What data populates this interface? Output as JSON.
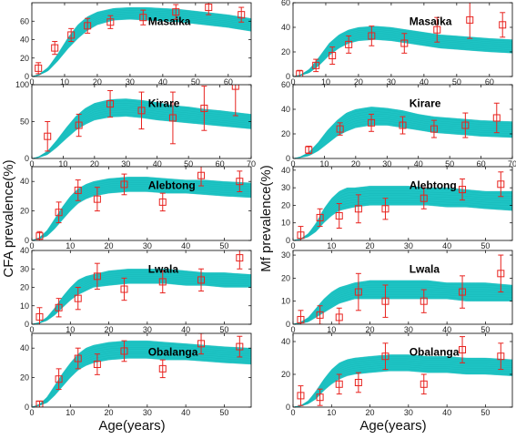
{
  "figure": {
    "ylabel_left": "CFA prevalence(%)",
    "ylabel_right": "Mf prevalence(%)",
    "xlabel_left": "Age(years)",
    "xlabel_right": "Age(years)",
    "band_color": "#1EC4C4",
    "marker_color": "#E8231F"
  },
  "chart_data": [
    {
      "id": "cfa-masaika",
      "type": "line",
      "column": "left",
      "row": 0,
      "title": "Masaika",
      "xlim": [
        0,
        67
      ],
      "ylim": [
        0,
        80
      ],
      "xticks": [
        0,
        10,
        20,
        30,
        40,
        50,
        60
      ],
      "yticks": [
        0,
        20,
        40,
        60
      ],
      "band": {
        "age": [
          0,
          2,
          5,
          8,
          11,
          14,
          17,
          20,
          25,
          30,
          35,
          40,
          45,
          50,
          55,
          60,
          67
        ],
        "lower": [
          0,
          1,
          6,
          17,
          30,
          41,
          50,
          56,
          61,
          62,
          61,
          60,
          59,
          57,
          55,
          53,
          49
        ],
        "upper": [
          0,
          2,
          10,
          25,
          42,
          56,
          65,
          70,
          74,
          75,
          75,
          74,
          73,
          71,
          69,
          67,
          63
        ]
      },
      "points": {
        "age": [
          2,
          7,
          12,
          17,
          24,
          34,
          44,
          54,
          64
        ],
        "value": [
          9,
          31,
          45,
          55,
          59,
          64,
          70,
          75,
          67
        ],
        "err": [
          6,
          7,
          7,
          8,
          7,
          8,
          8,
          8,
          8
        ]
      }
    },
    {
      "id": "cfa-kirare",
      "type": "line",
      "column": "left",
      "row": 1,
      "title": "Kirare",
      "xlim": [
        0,
        70
      ],
      "ylim": [
        0,
        100
      ],
      "xticks": [
        0,
        10,
        20,
        30,
        40,
        50,
        60,
        70
      ],
      "yticks": [
        0,
        50,
        100
      ],
      "band": {
        "age": [
          0,
          2,
          5,
          8,
          11,
          14,
          17,
          20,
          25,
          30,
          35,
          40,
          45,
          50,
          55,
          60,
          70
        ],
        "lower": [
          0,
          1,
          5,
          15,
          27,
          38,
          46,
          52,
          56,
          57,
          55,
          52,
          50,
          48,
          46,
          44,
          40
        ],
        "upper": [
          0,
          2,
          10,
          25,
          42,
          57,
          68,
          75,
          80,
          81,
          79,
          76,
          72,
          70,
          67,
          65,
          60
        ]
      },
      "points": {
        "age": [
          5,
          15,
          25,
          35,
          45,
          55,
          65
        ],
        "value": [
          30,
          45,
          74,
          65,
          55,
          68,
          98
        ],
        "err": [
          20,
          15,
          18,
          25,
          35,
          30,
          40
        ]
      }
    },
    {
      "id": "cfa-alebtong",
      "type": "line",
      "column": "left",
      "row": 2,
      "title": "Alebtong",
      "xlim": [
        0,
        57
      ],
      "ylim": [
        0,
        50
      ],
      "xticks": [
        0,
        10,
        20,
        30,
        40,
        50
      ],
      "yticks": [
        0,
        20,
        40
      ],
      "band": {
        "age": [
          0,
          2,
          4,
          6,
          8,
          10,
          12,
          14,
          16,
          20,
          25,
          30,
          35,
          40,
          45,
          50,
          57
        ],
        "lower": [
          0,
          1,
          3,
          8,
          14,
          20,
          25,
          28,
          30,
          32,
          33,
          33,
          32,
          32,
          31,
          30,
          29
        ],
        "upper": [
          0,
          2,
          7,
          15,
          23,
          30,
          35,
          38,
          40,
          42,
          43,
          43,
          42,
          41,
          41,
          40,
          39
        ]
      },
      "points": {
        "age": [
          2,
          7,
          12,
          17,
          24,
          34,
          44,
          54
        ],
        "value": [
          3,
          19,
          34,
          28,
          38,
          26,
          44,
          40
        ],
        "err": [
          3,
          7,
          7,
          8,
          7,
          6,
          7,
          7
        ]
      }
    },
    {
      "id": "cfa-lwala",
      "type": "line",
      "column": "left",
      "row": 3,
      "title": "Lwala",
      "xlim": [
        0,
        57
      ],
      "ylim": [
        0,
        40
      ],
      "xticks": [
        0,
        10,
        20,
        30,
        40,
        50
      ],
      "yticks": [
        0,
        10,
        20,
        30,
        40
      ],
      "band": {
        "age": [
          0,
          2,
          4,
          6,
          8,
          10,
          12,
          14,
          16,
          20,
          25,
          30,
          35,
          40,
          45,
          50,
          57
        ],
        "lower": [
          0,
          0.5,
          2,
          5,
          9,
          13,
          16,
          18,
          20,
          21,
          22,
          22,
          22,
          21,
          21,
          20,
          20
        ],
        "upper": [
          0,
          1,
          4,
          9,
          15,
          20,
          24,
          26,
          27,
          29,
          30,
          30,
          30,
          29,
          28,
          28,
          27
        ]
      },
      "points": {
        "age": [
          2,
          7,
          12,
          17,
          24,
          34,
          44,
          54
        ],
        "value": [
          4,
          9,
          14,
          26,
          19,
          23,
          24,
          36
        ],
        "err": [
          5,
          5,
          6,
          7,
          6,
          6,
          6,
          6
        ]
      }
    },
    {
      "id": "cfa-obalanga",
      "type": "line",
      "column": "left",
      "row": 4,
      "title": "Obalanga",
      "xlim": [
        0,
        57
      ],
      "ylim": [
        0,
        50
      ],
      "xticks": [
        0,
        10,
        20,
        30,
        40,
        50
      ],
      "yticks": [
        0,
        20,
        40
      ],
      "band": {
        "age": [
          0,
          2,
          4,
          6,
          8,
          10,
          12,
          14,
          16,
          20,
          25,
          30,
          35,
          40,
          45,
          50,
          57
        ],
        "lower": [
          0,
          1,
          3,
          8,
          14,
          20,
          25,
          28,
          30,
          32,
          33,
          33,
          32,
          32,
          31,
          30,
          29
        ],
        "upper": [
          0,
          2,
          7,
          15,
          23,
          30,
          36,
          40,
          42,
          44,
          45,
          45,
          44,
          43,
          42,
          41,
          40
        ]
      },
      "points": {
        "age": [
          2,
          7,
          12,
          17,
          24,
          34,
          44,
          54
        ],
        "value": [
          2,
          19,
          33,
          29,
          38,
          26,
          43,
          41
        ],
        "err": [
          2,
          7,
          7,
          7,
          7,
          6,
          7,
          7
        ]
      }
    },
    {
      "id": "mf-masaika",
      "type": "line",
      "column": "right",
      "row": 0,
      "title": "Masaika",
      "xlim": [
        0,
        67
      ],
      "ylim": [
        0,
        60
      ],
      "xticks": [
        0,
        10,
        20,
        30,
        40,
        50,
        60
      ],
      "yticks": [
        0,
        20,
        40,
        60
      ],
      "band": {
        "age": [
          0,
          2,
          5,
          8,
          11,
          14,
          17,
          20,
          25,
          30,
          35,
          40,
          45,
          50,
          55,
          60,
          67
        ],
        "lower": [
          0,
          0.5,
          3,
          9,
          17,
          23,
          27,
          29,
          30,
          29,
          27,
          25,
          23,
          22,
          21,
          20,
          19
        ],
        "upper": [
          0,
          1,
          6,
          16,
          27,
          34,
          38,
          40,
          41,
          40,
          38,
          36,
          34,
          33,
          32,
          31,
          30
        ]
      },
      "points": {
        "age": [
          2,
          7,
          12,
          17,
          24,
          34,
          44,
          54,
          64
        ],
        "value": [
          2,
          9,
          17,
          26,
          33,
          27,
          38,
          46,
          42
        ],
        "err": [
          3,
          5,
          7,
          7,
          8,
          8,
          10,
          15,
          10
        ]
      }
    },
    {
      "id": "mf-kirare",
      "type": "line",
      "column": "right",
      "row": 1,
      "title": "Kirare",
      "xlim": [
        0,
        70
      ],
      "ylim": [
        0,
        60
      ],
      "xticks": [
        0,
        10,
        20,
        30,
        40,
        50,
        60,
        70
      ],
      "yticks": [
        0,
        20,
        40,
        60
      ],
      "band": {
        "age": [
          0,
          2,
          5,
          8,
          11,
          14,
          17,
          20,
          25,
          30,
          35,
          40,
          45,
          50,
          55,
          60,
          70
        ],
        "lower": [
          0,
          0.5,
          2,
          6,
          12,
          18,
          22,
          25,
          27,
          27,
          25,
          23,
          21,
          20,
          19,
          18,
          17
        ],
        "upper": [
          0,
          1,
          5,
          13,
          23,
          31,
          37,
          40,
          42,
          41,
          39,
          36,
          34,
          33,
          32,
          31,
          30
        ]
      },
      "points": {
        "age": [
          5,
          15,
          25,
          35,
          45,
          55,
          65
        ],
        "value": [
          7,
          24,
          29,
          27,
          24,
          27,
          33
        ],
        "err": [
          3,
          5,
          7,
          7,
          7,
          10,
          12
        ]
      }
    },
    {
      "id": "mf-alebtong",
      "type": "line",
      "column": "right",
      "row": 2,
      "title": "Alebtong",
      "xlim": [
        0,
        57
      ],
      "ylim": [
        0,
        42
      ],
      "xticks": [
        0,
        10,
        20,
        30,
        40,
        50
      ],
      "yticks": [
        0,
        10,
        20,
        30,
        40
      ],
      "band": {
        "age": [
          0,
          2,
          4,
          6,
          8,
          10,
          12,
          14,
          16,
          20,
          25,
          30,
          35,
          40,
          45,
          50,
          57
        ],
        "lower": [
          0,
          0.5,
          2,
          5,
          10,
          14,
          17,
          18,
          19,
          20,
          20,
          20,
          20,
          19,
          19,
          18,
          17
        ],
        "upper": [
          0,
          1,
          4,
          10,
          18,
          24,
          28,
          30,
          30,
          31,
          31,
          31,
          30,
          30,
          29,
          28,
          28
        ]
      },
      "points": {
        "age": [
          2,
          7,
          12,
          17,
          24,
          34,
          44,
          54
        ],
        "value": [
          3,
          13,
          14,
          18,
          18,
          24,
          29,
          32
        ],
        "err": [
          5,
          5,
          7,
          8,
          6,
          6,
          6,
          7
        ]
      }
    },
    {
      "id": "mf-lwala",
      "type": "line",
      "column": "right",
      "row": 3,
      "title": "Lwala",
      "xlim": [
        0,
        57
      ],
      "ylim": [
        0,
        32
      ],
      "xticks": [
        0,
        10,
        20,
        30,
        40,
        50
      ],
      "yticks": [
        0,
        10,
        20,
        30
      ],
      "band": {
        "age": [
          0,
          2,
          4,
          6,
          8,
          10,
          12,
          14,
          16,
          20,
          25,
          30,
          35,
          40,
          45,
          50,
          57
        ],
        "lower": [
          0,
          0.3,
          1,
          3,
          5,
          7,
          9,
          10,
          11,
          11,
          11,
          11,
          11,
          11,
          10,
          10,
          10
        ],
        "upper": [
          0,
          1,
          3,
          7,
          11,
          14,
          16,
          17,
          18,
          19,
          19,
          19,
          19,
          18,
          18,
          18,
          17
        ]
      },
      "points": {
        "age": [
          2,
          7,
          12,
          17,
          24,
          34,
          44,
          54
        ],
        "value": [
          2,
          4,
          3,
          14,
          10,
          10,
          14,
          22
        ],
        "err": [
          4,
          4,
          4,
          8,
          7,
          5,
          7,
          8
        ]
      }
    },
    {
      "id": "mf-obalanga",
      "type": "line",
      "column": "right",
      "row": 4,
      "title": "Obalanga",
      "xlim": [
        0,
        57
      ],
      "ylim": [
        0,
        45
      ],
      "xticks": [
        0,
        10,
        20,
        30,
        40,
        50
      ],
      "yticks": [
        0,
        20,
        40
      ],
      "band": {
        "age": [
          0,
          2,
          4,
          6,
          8,
          10,
          12,
          14,
          16,
          20,
          25,
          30,
          35,
          40,
          45,
          50,
          57
        ],
        "lower": [
          0,
          0.5,
          2,
          5,
          10,
          14,
          17,
          19,
          20,
          21,
          22,
          22,
          21,
          21,
          20,
          20,
          19
        ],
        "upper": [
          0,
          1,
          4,
          10,
          17,
          23,
          27,
          29,
          30,
          31,
          32,
          32,
          31,
          31,
          30,
          30,
          29
        ]
      },
      "points": {
        "age": [
          2,
          7,
          12,
          17,
          24,
          34,
          44,
          54
        ],
        "value": [
          7,
          6,
          14,
          15,
          31,
          14,
          35,
          31
        ],
        "err": [
          6,
          5,
          6,
          6,
          8,
          6,
          8,
          8
        ]
      }
    }
  ]
}
